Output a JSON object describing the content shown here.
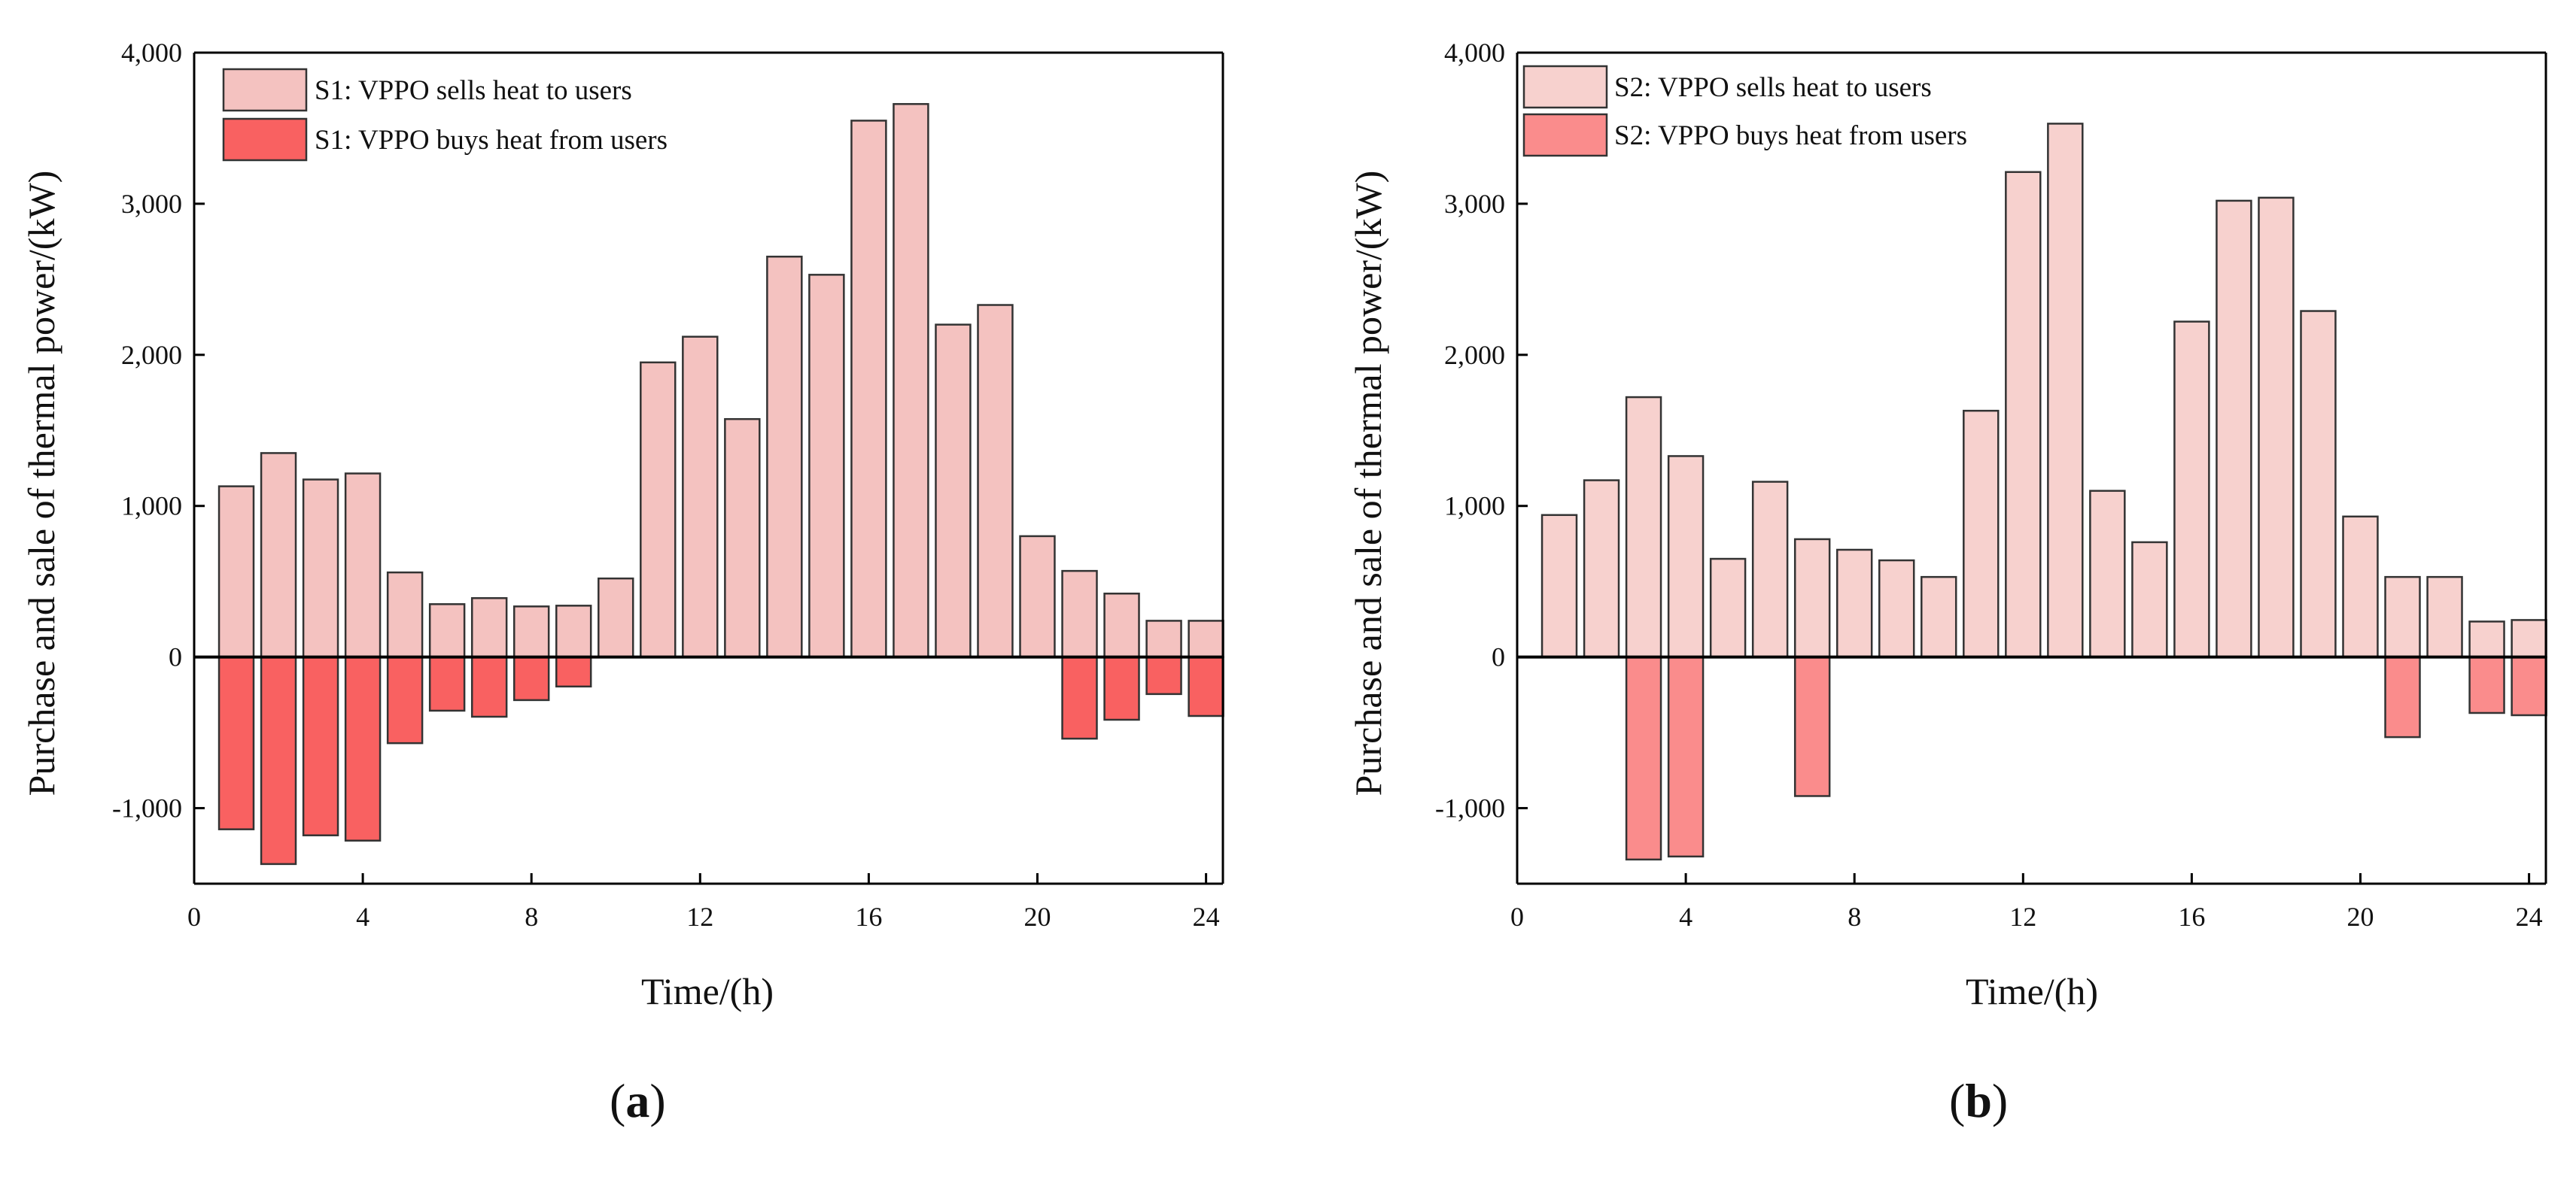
{
  "chart_data": [
    {
      "type": "bar",
      "panel_label_open": "(",
      "panel_label_letter": "a",
      "panel_label_close": ")",
      "xlabel": "Time/(h)",
      "ylabel": "Purchase and sale of thermal power/(kW)",
      "xlim": [
        0,
        24.4
      ],
      "ylim": [
        -1500,
        4000
      ],
      "x_ticks": [
        0,
        4,
        8,
        12,
        16,
        20,
        24
      ],
      "y_ticks": [
        -1000,
        0,
        1000,
        2000,
        3000,
        4000
      ],
      "y_tick_labels": [
        "-1,000",
        "0",
        "1,000",
        "2,000",
        "3,000",
        "4,000"
      ],
      "legend_position": "top-left",
      "x": [
        1,
        2,
        3,
        4,
        5,
        6,
        7,
        8,
        9,
        10,
        11,
        12,
        13,
        14,
        15,
        16,
        17,
        18,
        19,
        20,
        21,
        22,
        23,
        24
      ],
      "series": [
        {
          "name": "S1: VPPO sells heat to users",
          "color": "#f4c2c0",
          "values": [
            1130,
            1350,
            1175,
            1215,
            560,
            350,
            390,
            335,
            340,
            520,
            1950,
            2120,
            1575,
            2650,
            2530,
            3550,
            3660,
            2200,
            2330,
            800,
            570,
            420,
            240,
            240
          ]
        },
        {
          "name": "S1: VPPO buys heat from users",
          "color": "#f96161",
          "values": [
            -1140,
            -1370,
            -1180,
            -1215,
            -570,
            -355,
            -395,
            -285,
            -195,
            0,
            0,
            0,
            0,
            0,
            0,
            0,
            0,
            0,
            0,
            0,
            -540,
            -415,
            -245,
            -390
          ]
        }
      ]
    },
    {
      "type": "bar",
      "panel_label_open": "(",
      "panel_label_letter": "b",
      "panel_label_close": ")",
      "xlabel": "Time/(h)",
      "ylabel": "Purchase and sale of thermal power/(kW)",
      "xlim": [
        0,
        24.4
      ],
      "ylim": [
        -1500,
        4000
      ],
      "x_ticks": [
        0,
        4,
        8,
        12,
        16,
        20,
        24
      ],
      "y_ticks": [
        -1000,
        0,
        1000,
        2000,
        3000,
        4000
      ],
      "y_tick_labels": [
        "-1,000",
        "0",
        "1,000",
        "2,000",
        "3,000",
        "4,000"
      ],
      "legend_position": "top-left",
      "x": [
        1,
        2,
        3,
        4,
        5,
        6,
        7,
        8,
        9,
        10,
        11,
        12,
        13,
        14,
        15,
        16,
        17,
        18,
        19,
        20,
        21,
        22,
        23,
        24
      ],
      "series": [
        {
          "name": "S2: VPPO sells heat to users",
          "color": "#f7d1ce",
          "values": [
            940,
            1170,
            1720,
            1330,
            650,
            1160,
            780,
            710,
            640,
            530,
            1630,
            3210,
            3530,
            1100,
            760,
            2220,
            3020,
            3040,
            2290,
            930,
            530,
            530,
            235,
            245
          ]
        },
        {
          "name": "S2: VPPO buys heat from users",
          "color": "#fa8c8c",
          "values": [
            0,
            0,
            -1340,
            -1320,
            0,
            0,
            -920,
            0,
            0,
            0,
            0,
            0,
            0,
            0,
            0,
            0,
            0,
            0,
            0,
            0,
            -530,
            0,
            -370,
            -385
          ]
        }
      ]
    }
  ]
}
